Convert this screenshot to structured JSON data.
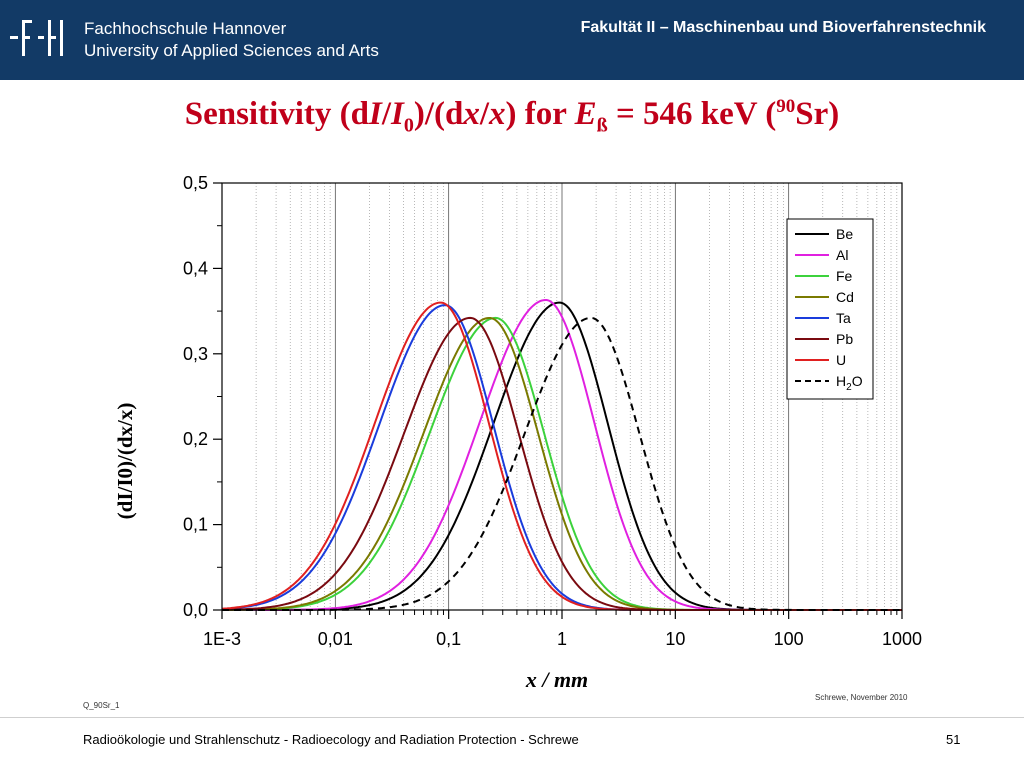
{
  "header": {
    "logo_text": "-F|-|",
    "school_line1": "Fachhochschule Hannover",
    "school_line2": "University of Applied Sciences and Arts",
    "faculty": "Fakultät II – Maschinenbau und Bioverfahrenstechnik"
  },
  "slide": {
    "title_prefix": "Sensitivity (d",
    "title_I": "I",
    "title_slash": "/",
    "title_I0": "I",
    "title_sub0": "0",
    "title_mid": ")/(d",
    "title_x": "x",
    "title_mid2": "/",
    "title_x2": "x",
    "title_mid3": ") for ",
    "title_E": "E",
    "title_Esub": "ß",
    "title_energy": " = 546 keV (",
    "title_sup": "90",
    "title_end": "Sr)",
    "code_label": "Q_90Sr_1",
    "credit": "Schrewe, November 2010",
    "footer": "Radioökologie und Strahlenschutz - Radioecology and Radiation Protection - Schrewe",
    "page_number": "51"
  },
  "chart_data": {
    "type": "line",
    "x_scale": "log",
    "xlim": [
      0.001,
      1000
    ],
    "ylim": [
      0,
      0.5
    ],
    "x_ticks": [
      "1E-3",
      "0,01",
      "0,1",
      "1",
      "10",
      "100",
      "1000"
    ],
    "y_ticks": [
      "0,0",
      "0,1",
      "0,2",
      "0,3",
      "0,4",
      "0,5"
    ],
    "xlabel": "x / mm",
    "ylabel": "(dI/I0)/(dx/x)",
    "legend_position": "top-right",
    "series": [
      {
        "name": "Be",
        "color": "#000000",
        "dash": false,
        "peak_x": 0.95,
        "peak_y": 0.36
      },
      {
        "name": "Al",
        "color": "#e020e0",
        "dash": false,
        "peak_x": 0.72,
        "peak_y": 0.363
      },
      {
        "name": "Fe",
        "color": "#3cd23c",
        "dash": false,
        "peak_x": 0.26,
        "peak_y": 0.342
      },
      {
        "name": "Cd",
        "color": "#7a7a00",
        "dash": false,
        "peak_x": 0.23,
        "peak_y": 0.342
      },
      {
        "name": "Ta",
        "color": "#1a3cdc",
        "dash": false,
        "peak_x": 0.093,
        "peak_y": 0.357
      },
      {
        "name": "Pb",
        "color": "#7a0a10",
        "dash": false,
        "peak_x": 0.155,
        "peak_y": 0.342
      },
      {
        "name": "U",
        "color": "#e02020",
        "dash": false,
        "peak_x": 0.085,
        "peak_y": 0.36
      },
      {
        "name": "H2O",
        "color": "#000000",
        "dash": true,
        "peak_x": 1.8,
        "peak_y": 0.342
      }
    ]
  }
}
